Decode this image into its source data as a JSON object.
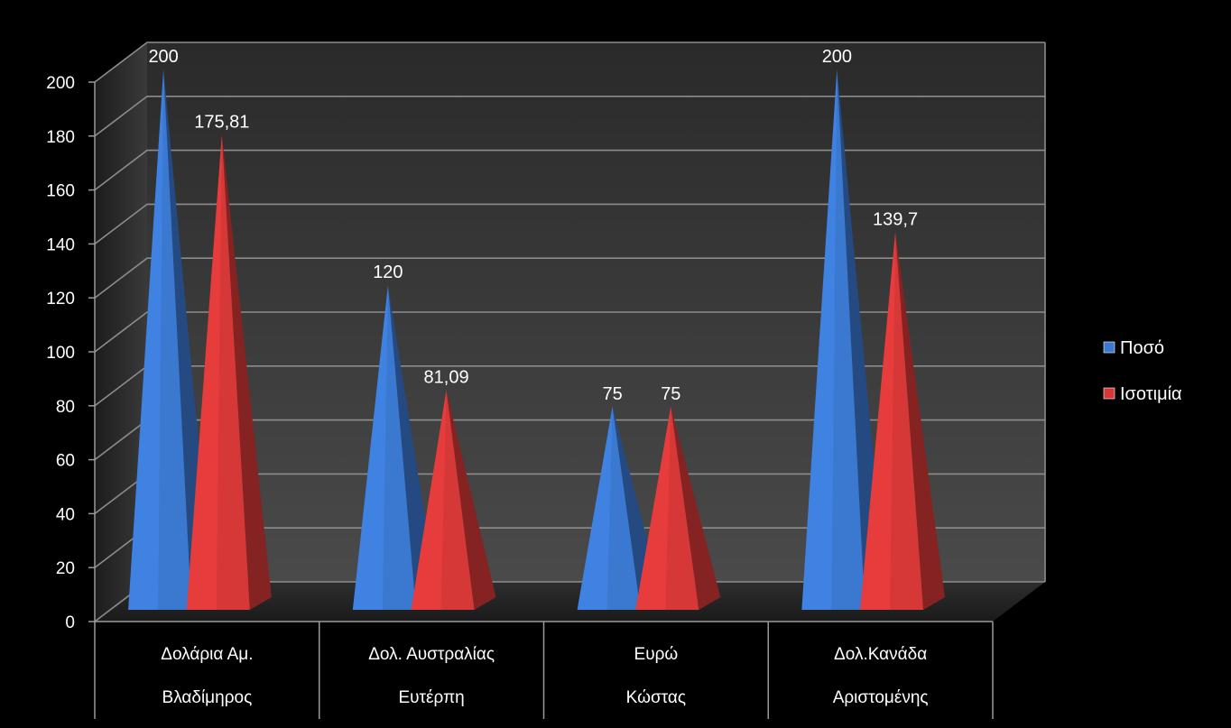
{
  "chart_data": {
    "type": "bar",
    "categories": [
      [
        "Δολάρια Αμ.",
        "Βλαδίμηρος"
      ],
      [
        "Δολ. Αυστραλίας",
        "Ευτέρπη"
      ],
      [
        "Ευρώ",
        "Κώστας"
      ],
      [
        "Δολ.Κανάδα",
        "Αριστομένης"
      ]
    ],
    "series": [
      {
        "name": "Ποσό",
        "values": [
          200,
          120,
          75,
          200
        ],
        "labels": [
          "200",
          "120",
          "75",
          "200"
        ],
        "color": "#3b78d0"
      },
      {
        "name": "Ισοτιμία",
        "values": [
          175.81,
          81.09,
          75,
          139.7
        ],
        "labels": [
          "175,81",
          "81,09",
          "75",
          "139,7"
        ],
        "color": "#d63838"
      }
    ],
    "ylim": [
      0,
      200
    ],
    "yticks": [
      "0",
      "20",
      "40",
      "60",
      "80",
      "100",
      "120",
      "140",
      "160",
      "180",
      "200"
    ],
    "grid": true,
    "legend": "right"
  }
}
